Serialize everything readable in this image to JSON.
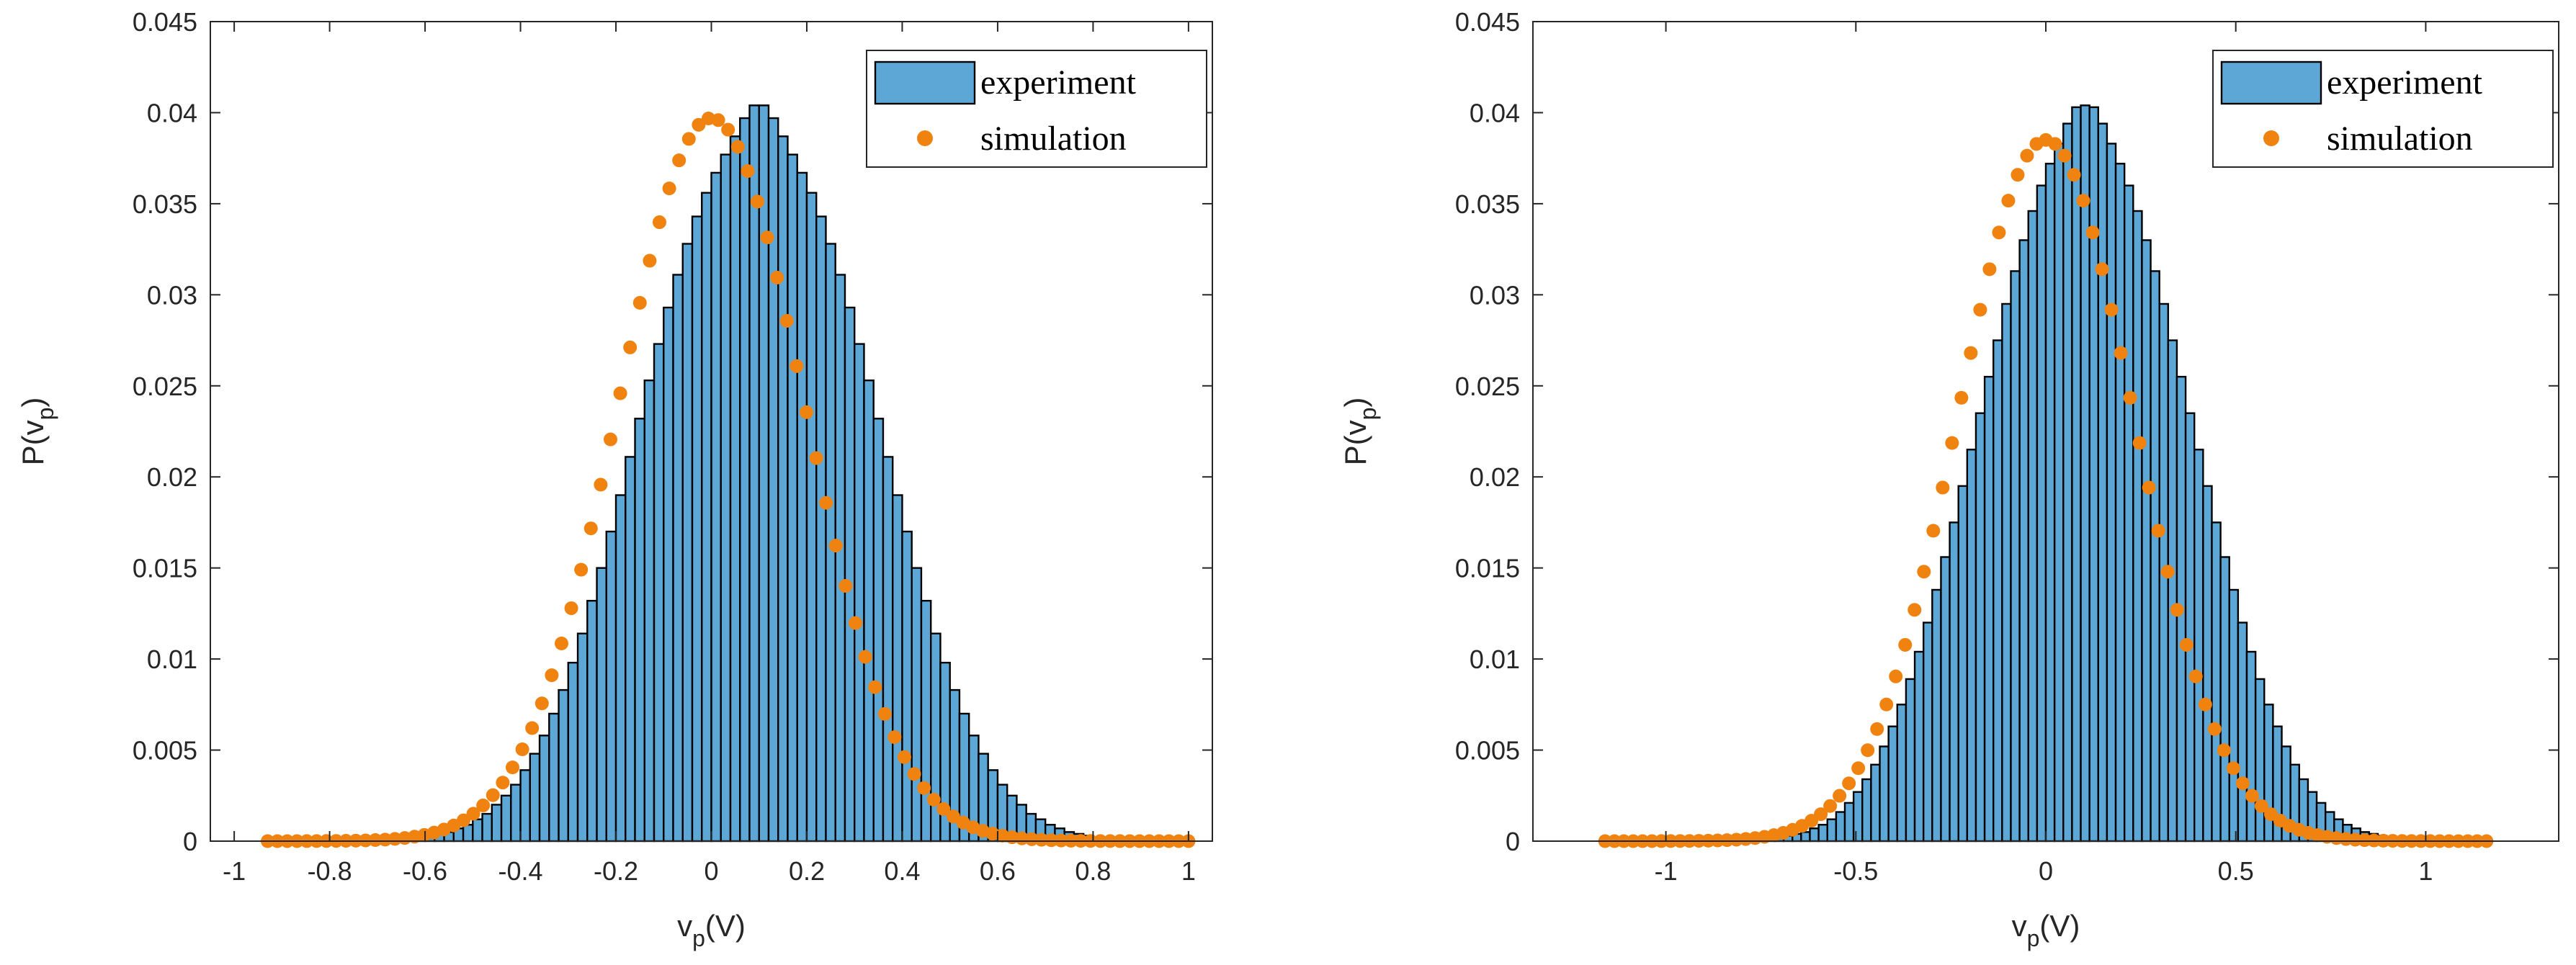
{
  "colors": {
    "bar_fill": "#5da7d7",
    "bar_edge": "#000000",
    "marker": "#f0820f",
    "axis": "#262626"
  },
  "chart_data": [
    {
      "type": "bar",
      "title": "",
      "xlabel": {
        "main": "v",
        "sub": "p",
        "suffix": "(V)"
      },
      "ylabel": {
        "main": "P(v",
        "sub": "p",
        "suffix": ")"
      },
      "xlim": [
        -1.05,
        1.05
      ],
      "ylim": [
        0,
        0.045
      ],
      "xticks": [
        -1,
        -0.8,
        -0.6,
        -0.4,
        -0.2,
        0,
        0.2,
        0.4,
        0.6,
        0.8,
        1
      ],
      "xtick_labels": [
        "-1",
        "-0.8",
        "-0.6",
        "-0.4",
        "-0.2",
        "0",
        "0.2",
        "0.4",
        "0.6",
        "0.8",
        "1"
      ],
      "yticks": [
        0,
        0.005,
        0.01,
        0.015,
        0.02,
        0.025,
        0.03,
        0.035,
        0.04,
        0.045
      ],
      "ytick_labels": [
        "0",
        "0.005",
        "0.01",
        "0.015",
        "0.02",
        "0.025",
        "0.03",
        "0.035",
        "0.04",
        "0.045"
      ],
      "legend": {
        "position": "top-right",
        "entries": [
          "experiment",
          "simulation"
        ]
      },
      "grid": false,
      "series": [
        {
          "name": "experiment",
          "kind": "histogram",
          "bin_range": [
            -1.0,
            1.0
          ],
          "bin_count": 100,
          "values": [
            0,
            0,
            0,
            0,
            0,
            0,
            0,
            0,
            0,
            0,
            0,
            0,
            0,
            0,
            0,
            0,
            0,
            0,
            0.0001,
            0.0002,
            0.0003,
            0.0004,
            0.0005,
            0.0007,
            0.0009,
            0.0012,
            0.0015,
            0.002,
            0.0025,
            0.0031,
            0.0039,
            0.0048,
            0.0058,
            0.007,
            0.0083,
            0.0098,
            0.0114,
            0.0132,
            0.015,
            0.017,
            0.019,
            0.0211,
            0.0232,
            0.0253,
            0.0273,
            0.0293,
            0.0311,
            0.0328,
            0.0343,
            0.0356,
            0.0367,
            0.0377,
            0.0387,
            0.0397,
            0.0404,
            0.0404,
            0.0397,
            0.0387,
            0.0377,
            0.0367,
            0.0356,
            0.0343,
            0.0328,
            0.0311,
            0.0293,
            0.0273,
            0.0253,
            0.0232,
            0.0211,
            0.019,
            0.017,
            0.015,
            0.0132,
            0.0114,
            0.0098,
            0.0083,
            0.007,
            0.0058,
            0.0048,
            0.0039,
            0.0031,
            0.0025,
            0.002,
            0.0015,
            0.0012,
            0.0009,
            0.0007,
            0.0005,
            0.0004,
            0.0003,
            0.0002,
            0.0001,
            0,
            0,
            0,
            0,
            0,
            0,
            0,
            0
          ]
        },
        {
          "name": "simulation",
          "kind": "markers",
          "x_range": [
            -0.93,
            1.0
          ],
          "point_count": 95,
          "center": 0.0,
          "sigma": 0.195,
          "peak": 0.0397
        }
      ]
    },
    {
      "type": "bar",
      "title": "",
      "xlabel": {
        "main": "v",
        "sub": "p",
        "suffix": "(V)"
      },
      "ylabel": {
        "main": "P(v",
        "sub": "p",
        "suffix": ")"
      },
      "xlim": [
        -1.35,
        1.35
      ],
      "ylim": [
        0,
        0.045
      ],
      "xticks": [
        -1,
        -0.5,
        0,
        0.5,
        1
      ],
      "xtick_labels": [
        "-1",
        "-0.5",
        "0",
        "0.5",
        "1"
      ],
      "yticks": [
        0,
        0.005,
        0.01,
        0.015,
        0.02,
        0.025,
        0.03,
        0.035,
        0.04,
        0.045
      ],
      "ytick_labels": [
        "0",
        "0.005",
        "0.01",
        "0.015",
        "0.02",
        "0.025",
        "0.03",
        "0.035",
        "0.04",
        "0.045"
      ],
      "legend": {
        "position": "top-right",
        "entries": [
          "experiment",
          "simulation"
        ]
      },
      "grid": false,
      "series": [
        {
          "name": "experiment",
          "kind": "histogram",
          "bin_range": [
            -1.15,
            1.15
          ],
          "bin_count": 100,
          "values": [
            0,
            0,
            0,
            0,
            0,
            0,
            0,
            0,
            0,
            0,
            0,
            0,
            0,
            0,
            0,
            0,
            0,
            0.0001,
            0.0001,
            0.0002,
            0.0003,
            0.0004,
            0.0005,
            0.0007,
            0.0009,
            0.0012,
            0.0016,
            0.0021,
            0.0027,
            0.0034,
            0.0042,
            0.0052,
            0.0063,
            0.0075,
            0.0089,
            0.0104,
            0.012,
            0.0138,
            0.0156,
            0.0175,
            0.0195,
            0.0215,
            0.0235,
            0.0255,
            0.0275,
            0.0295,
            0.0313,
            0.033,
            0.0346,
            0.036,
            0.0372,
            0.0383,
            0.0394,
            0.0403,
            0.0404,
            0.0403,
            0.0394,
            0.0383,
            0.0372,
            0.036,
            0.0346,
            0.033,
            0.0313,
            0.0295,
            0.0275,
            0.0255,
            0.0235,
            0.0215,
            0.0195,
            0.0175,
            0.0156,
            0.0138,
            0.012,
            0.0104,
            0.0089,
            0.0075,
            0.0063,
            0.0052,
            0.0042,
            0.0034,
            0.0027,
            0.0021,
            0.0016,
            0.0012,
            0.0009,
            0.0007,
            0.0005,
            0.0004,
            0.0003,
            0.0002,
            0.0001,
            0.0001,
            0,
            0,
            0,
            0,
            0,
            0,
            0,
            0
          ]
        },
        {
          "name": "simulation",
          "kind": "markers",
          "x_range": [
            -1.16,
            1.16
          ],
          "point_count": 95,
          "center": 0.0,
          "sigma": 0.232,
          "peak": 0.0385
        }
      ]
    }
  ]
}
